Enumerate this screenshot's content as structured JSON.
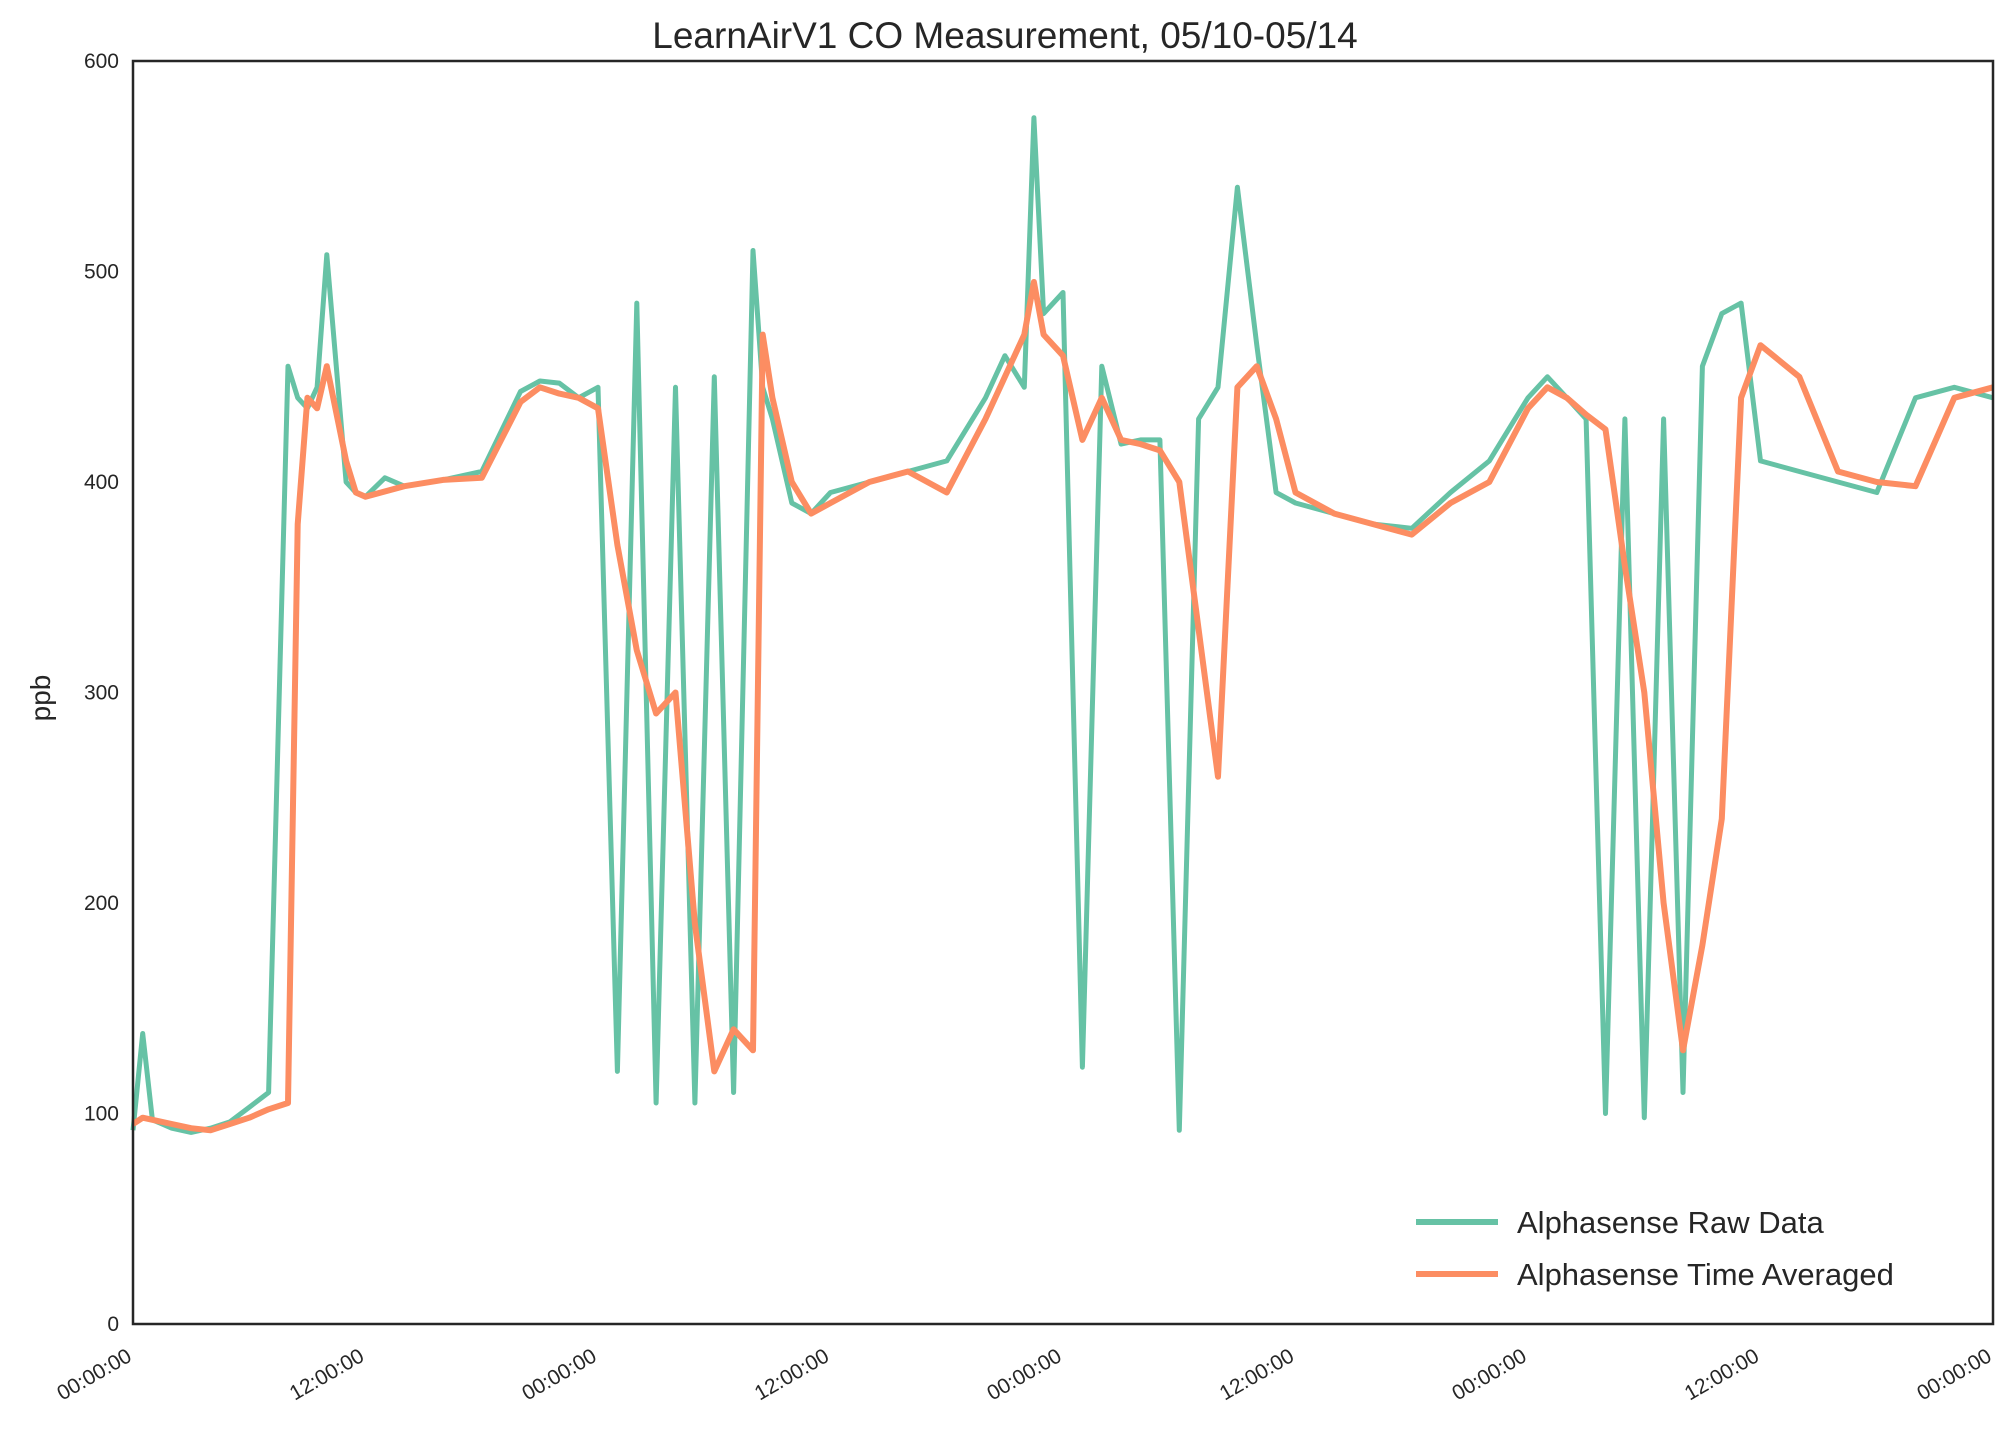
{
  "chart_data": {
    "type": "line",
    "title": "LearnAirV1 CO Measurement, 05/10-05/14",
    "xlabel": "",
    "ylabel": "ppb",
    "ylim": [
      0,
      600
    ],
    "yticks": [
      0,
      100,
      200,
      300,
      400,
      500,
      600
    ],
    "xlim": [
      "05/10 00:00:00",
      "05/14 00:00:00"
    ],
    "xtick_positions": [
      "05/10 00:00:00",
      "05/10 12:00:00",
      "05/11 00:00:00",
      "05/11 12:00:00",
      "05/12 00:00:00",
      "05/12 12:00:00",
      "05/13 00:00:00",
      "05/13 12:00:00",
      "05/14 00:00:00"
    ],
    "xtick_labels": [
      "00:00:00",
      "12:00:00",
      "00:00:00",
      "12:00:00",
      "00:00:00",
      "12:00:00",
      "00:00:00",
      "12:00:00",
      "00:00:00"
    ],
    "grid": false,
    "legend_position": "lower-right",
    "colors": {
      "raw": "#66c2a5",
      "avg": "#fc8d62",
      "axes": "#262626"
    },
    "series": [
      {
        "name": "Alphasense Raw Data",
        "color": "#66c2a5",
        "x": [
          "05/10 00:00",
          "05/10 00:30",
          "05/10 01:00",
          "05/10 01:30",
          "05/10 02:00",
          "05/10 03:00",
          "05/10 04:00",
          "05/10 05:00",
          "05/10 06:00",
          "05/10 07:00",
          "05/10 08:00",
          "05/10 08:30",
          "05/10 09:00",
          "05/10 09:30",
          "05/10 10:00",
          "05/10 11:00",
          "05/10 11:30",
          "05/10 12:00",
          "05/10 13:00",
          "05/10 14:00",
          "05/10 16:00",
          "05/10 18:00",
          "05/10 20:00",
          "05/10 21:00",
          "05/10 22:00",
          "05/10 23:00",
          "05/11 00:00",
          "05/11 01:00",
          "05/11 02:00",
          "05/11 03:00",
          "05/11 04:00",
          "05/11 05:00",
          "05/11 06:00",
          "05/11 07:00",
          "05/11 08:00",
          "05/11 08:30",
          "05/11 09:00",
          "05/11 10:00",
          "05/11 11:00",
          "05/11 12:00",
          "05/11 14:00",
          "05/11 16:00",
          "05/11 18:00",
          "05/11 20:00",
          "05/11 21:00",
          "05/11 22:00",
          "05/11 22:30",
          "05/11 23:00",
          "05/12 00:00",
          "05/12 01:00",
          "05/12 02:00",
          "05/12 03:00",
          "05/12 04:00",
          "05/12 05:00",
          "05/12 06:00",
          "05/12 07:00",
          "05/12 08:00",
          "05/12 09:00",
          "05/12 10:00",
          "05/12 11:00",
          "05/12 12:00",
          "05/12 14:00",
          "05/12 16:00",
          "05/12 18:00",
          "05/12 20:00",
          "05/12 22:00",
          "05/13 00:00",
          "05/13 01:00",
          "05/13 02:00",
          "05/13 03:00",
          "05/13 04:00",
          "05/13 05:00",
          "05/13 06:00",
          "05/13 07:00",
          "05/13 08:00",
          "05/13 09:00",
          "05/13 10:00",
          "05/13 11:00",
          "05/13 12:00",
          "05/13 14:00",
          "05/13 16:00",
          "05/13 18:00",
          "05/13 20:00",
          "05/13 22:00",
          "05/14 00:00"
        ],
        "y": [
          92,
          138,
          97,
          95,
          93,
          91,
          93,
          96,
          103,
          110,
          455,
          440,
          435,
          445,
          508,
          400,
          395,
          393,
          402,
          398,
          401,
          405,
          443,
          448,
          447,
          440,
          445,
          120,
          485,
          105,
          445,
          105,
          450,
          110,
          510,
          445,
          430,
          390,
          385,
          395,
          400,
          405,
          410,
          440,
          460,
          445,
          573,
          480,
          490,
          122,
          455,
          418,
          420,
          420,
          92,
          430,
          445,
          540,
          465,
          395,
          390,
          385,
          380,
          378,
          395,
          410,
          440,
          450,
          440,
          430,
          100,
          430,
          98,
          430,
          110,
          455,
          480,
          485,
          410,
          405,
          400,
          395,
          440,
          445,
          440
        ]
      },
      {
        "name": "Alphasense Time Averaged",
        "color": "#fc8d62",
        "x": [
          "05/10 00:00",
          "05/10 00:30",
          "05/10 01:00",
          "05/10 02:00",
          "05/10 03:00",
          "05/10 04:00",
          "05/10 05:00",
          "05/10 06:00",
          "05/10 07:00",
          "05/10 08:00",
          "05/10 08:30",
          "05/10 09:00",
          "05/10 09:30",
          "05/10 10:00",
          "05/10 11:00",
          "05/10 11:30",
          "05/10 12:00",
          "05/10 14:00",
          "05/10 16:00",
          "05/10 18:00",
          "05/10 20:00",
          "05/10 21:00",
          "05/10 22:00",
          "05/10 23:00",
          "05/11 00:00",
          "05/11 01:00",
          "05/11 02:00",
          "05/11 03:00",
          "05/11 04:00",
          "05/11 05:00",
          "05/11 06:00",
          "05/11 07:00",
          "05/11 08:00",
          "05/11 08:30",
          "05/11 09:00",
          "05/11 10:00",
          "05/11 11:00",
          "05/11 12:00",
          "05/11 14:00",
          "05/11 16:00",
          "05/11 18:00",
          "05/11 20:00",
          "05/11 21:00",
          "05/11 22:00",
          "05/11 22:30",
          "05/11 23:00",
          "05/12 00:00",
          "05/12 01:00",
          "05/12 02:00",
          "05/12 03:00",
          "05/12 04:00",
          "05/12 05:00",
          "05/12 06:00",
          "05/12 07:00",
          "05/12 08:00",
          "05/12 09:00",
          "05/12 10:00",
          "05/12 11:00",
          "05/12 12:00",
          "05/12 14:00",
          "05/12 16:00",
          "05/12 18:00",
          "05/12 20:00",
          "05/12 22:00",
          "05/13 00:00",
          "05/13 01:00",
          "05/13 02:00",
          "05/13 03:00",
          "05/13 04:00",
          "05/13 05:00",
          "05/13 06:00",
          "05/13 07:00",
          "05/13 08:00",
          "05/13 09:00",
          "05/13 10:00",
          "05/13 11:00",
          "05/13 12:00",
          "05/13 14:00",
          "05/13 16:00",
          "05/13 18:00",
          "05/13 20:00",
          "05/13 22:00",
          "05/14 00:00"
        ],
        "y": [
          95,
          98,
          97,
          95,
          93,
          92,
          95,
          98,
          102,
          105,
          380,
          440,
          435,
          455,
          410,
          395,
          393,
          398,
          401,
          402,
          438,
          445,
          442,
          440,
          435,
          370,
          320,
          290,
          300,
          190,
          120,
          140,
          130,
          470,
          440,
          400,
          385,
          390,
          400,
          405,
          395,
          430,
          450,
          470,
          495,
          470,
          460,
          420,
          440,
          420,
          418,
          415,
          400,
          330,
          260,
          445,
          455,
          430,
          395,
          385,
          380,
          375,
          390,
          400,
          435,
          445,
          440,
          432,
          425,
          360,
          300,
          200,
          130,
          180,
          240,
          440,
          465,
          450,
          405,
          400,
          398,
          440,
          445
        ]
      }
    ]
  }
}
